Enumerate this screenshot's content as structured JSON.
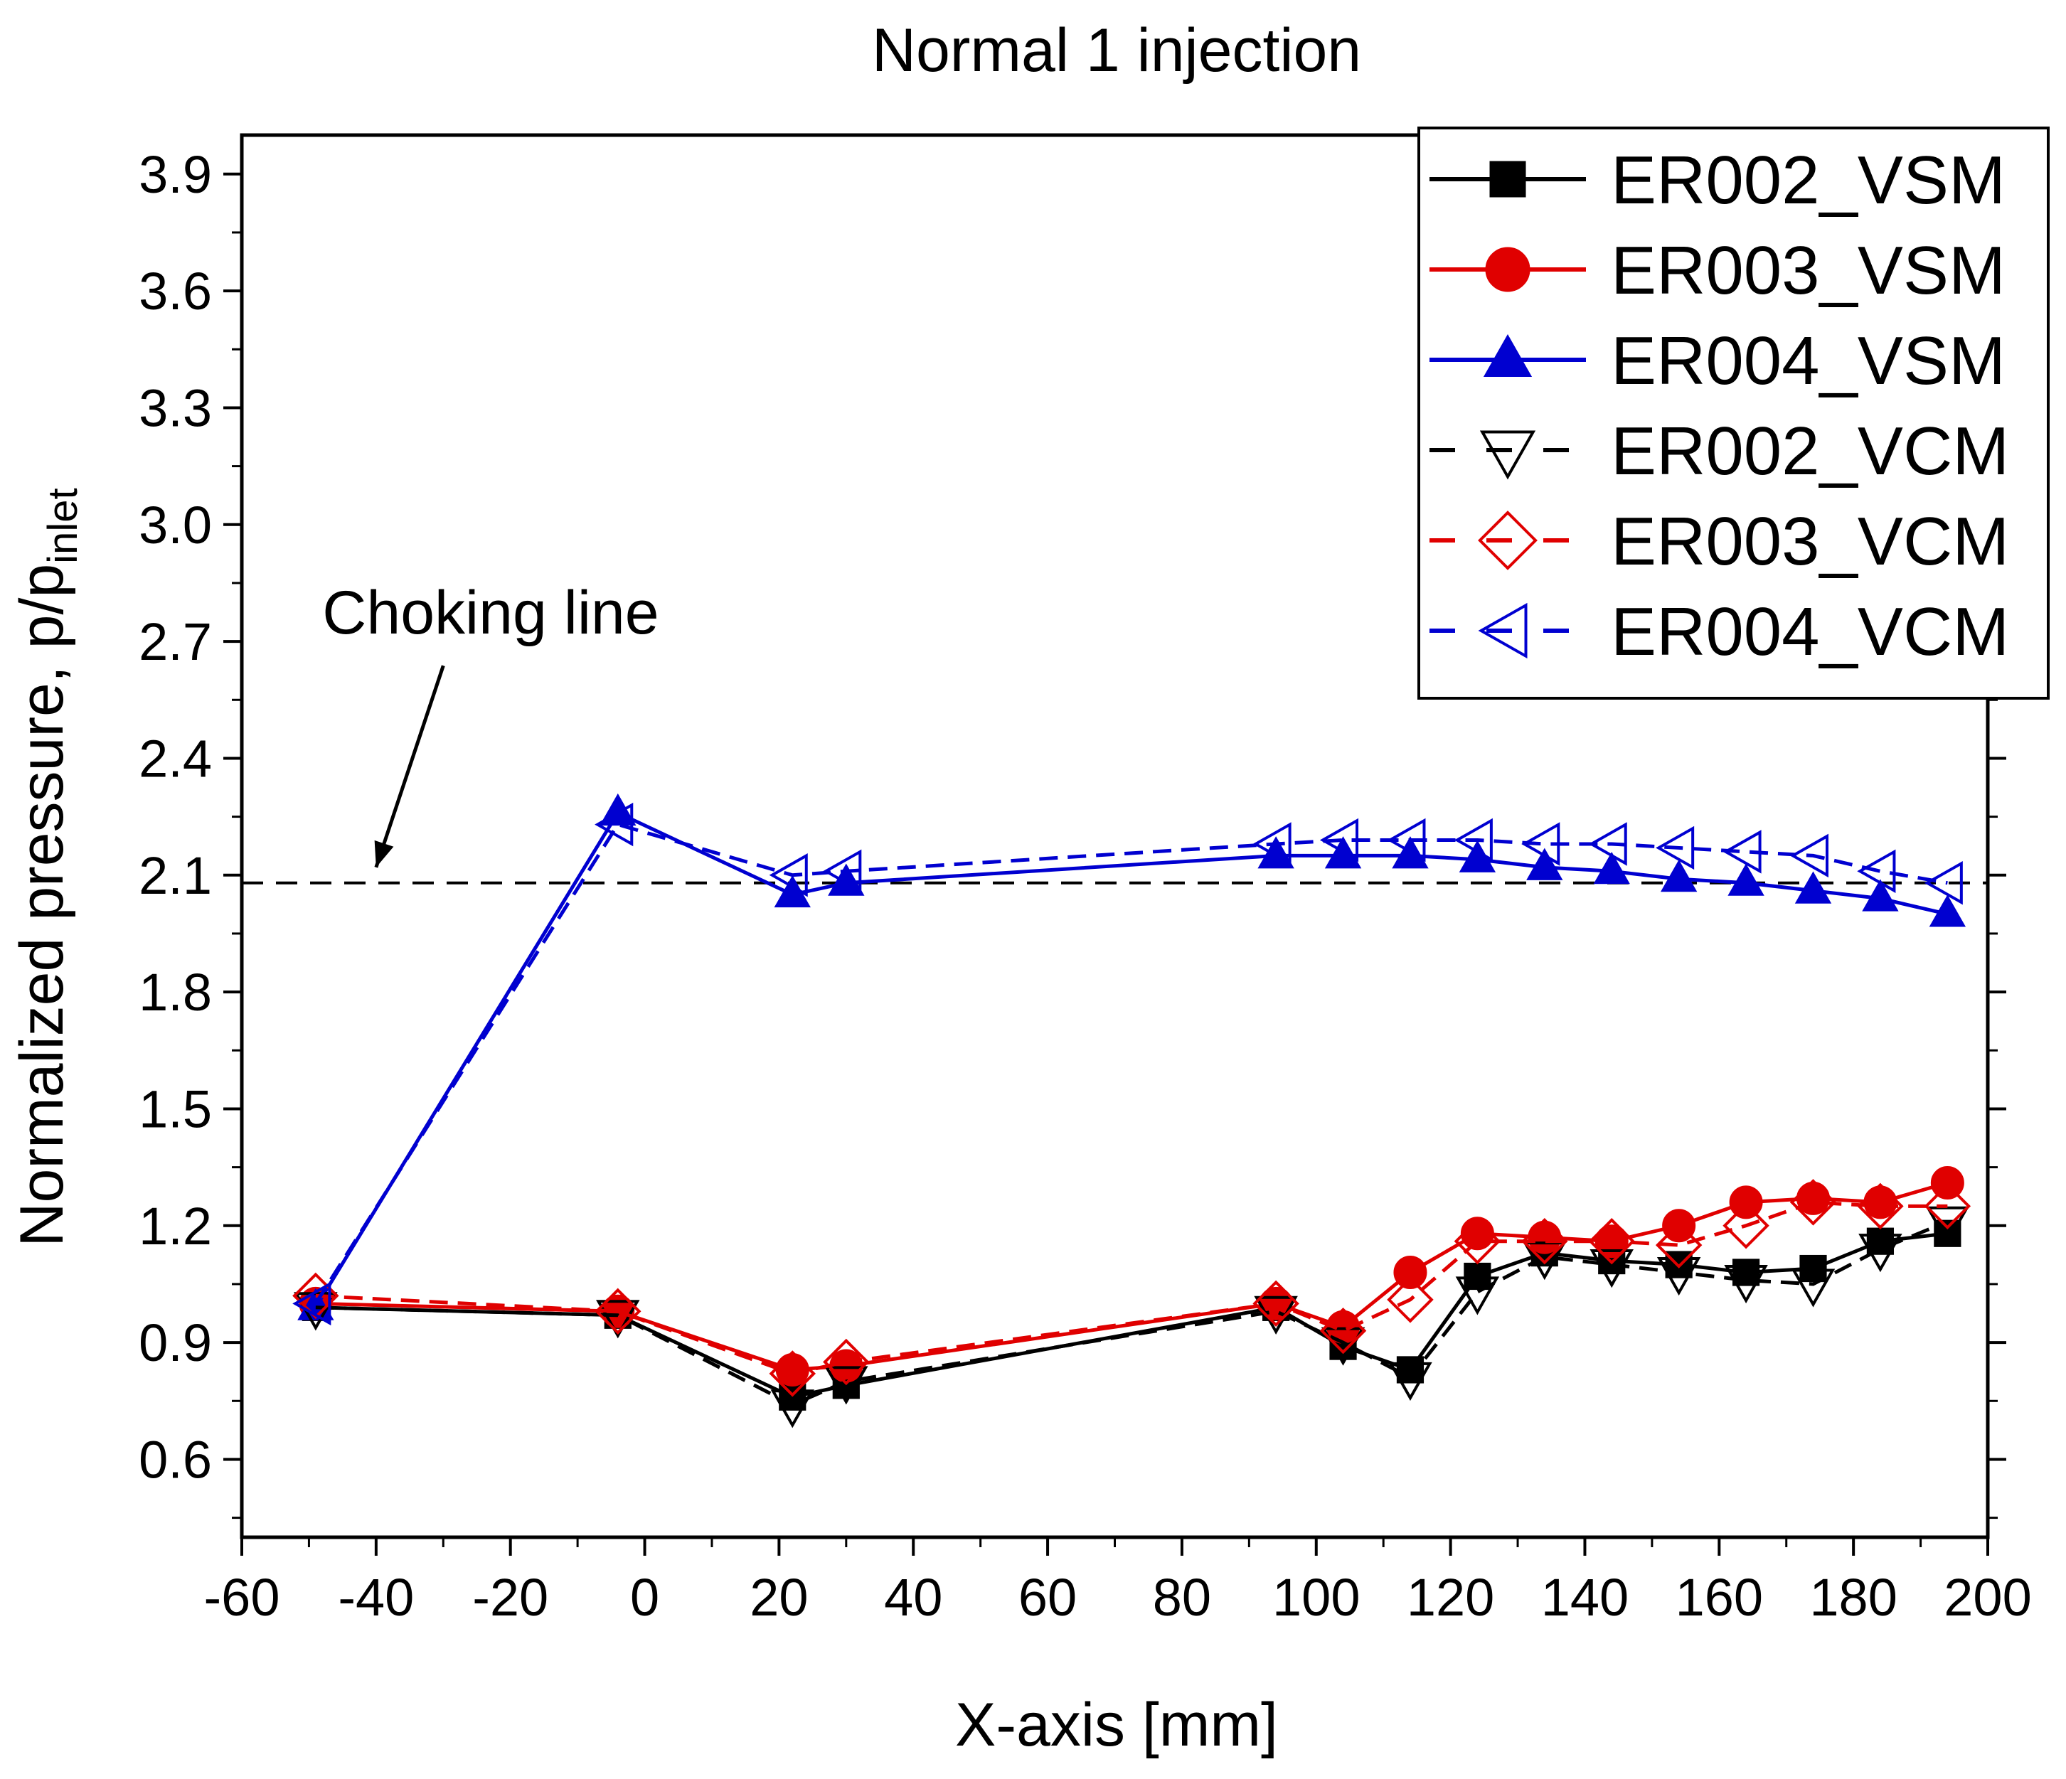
{
  "chart_data": {
    "type": "line",
    "title": "Normal 1 injection",
    "xlabel": "X-axis [mm]",
    "ylabel_main": "Normalized pressure, p/p",
    "ylabel_sub": "inlet",
    "xlim": [
      -60,
      200
    ],
    "ylim": [
      0.4,
      4.0
    ],
    "xticks": [
      -60,
      -40,
      -20,
      0,
      20,
      40,
      60,
      80,
      100,
      120,
      140,
      160,
      180,
      200
    ],
    "yticks": [
      0.6,
      0.9,
      1.2,
      1.5,
      1.8,
      2.1,
      2.4,
      2.7,
      3.0,
      3.3,
      3.6,
      3.9
    ],
    "grid": false,
    "legend_position": "top-right",
    "choking_line": {
      "value": 2.08,
      "label": "Choking line",
      "label_x": -48,
      "label_y": 2.72,
      "arrow_tip_x": -40,
      "arrow_tip_y": 2.12
    },
    "series": [
      {
        "name": "ER002_VSM",
        "color": "#000000",
        "dash": false,
        "marker": "square",
        "filled": true,
        "x": [
          -49,
          -4,
          22,
          30,
          94,
          104,
          114,
          124,
          134,
          144,
          154,
          164,
          174,
          184,
          194
        ],
        "y": [
          0.99,
          0.97,
          0.76,
          0.79,
          0.99,
          0.89,
          0.83,
          1.07,
          1.13,
          1.11,
          1.1,
          1.08,
          1.09,
          1.16,
          1.18
        ]
      },
      {
        "name": "ER003_VSM",
        "color": "#e00000",
        "dash": false,
        "marker": "circle",
        "filled": true,
        "x": [
          -49,
          -4,
          22,
          30,
          94,
          104,
          114,
          124,
          134,
          144,
          154,
          164,
          174,
          184,
          194
        ],
        "y": [
          1.0,
          0.98,
          0.83,
          0.84,
          1.0,
          0.94,
          1.08,
          1.18,
          1.17,
          1.16,
          1.2,
          1.26,
          1.27,
          1.26,
          1.31
        ]
      },
      {
        "name": "ER004_VSM",
        "color": "#0000d0",
        "dash": false,
        "marker": "triangle-up",
        "filled": true,
        "x": [
          -49,
          -4,
          22,
          30,
          94,
          104,
          114,
          124,
          134,
          144,
          154,
          164,
          174,
          184,
          194
        ],
        "y": [
          0.99,
          2.26,
          2.05,
          2.08,
          2.15,
          2.15,
          2.15,
          2.14,
          2.12,
          2.11,
          2.09,
          2.08,
          2.06,
          2.04,
          2.0
        ]
      },
      {
        "name": "ER002_VCM",
        "color": "#000000",
        "dash": true,
        "marker": "triangle-down",
        "filled": false,
        "x": [
          -49,
          -4,
          22,
          30,
          94,
          104,
          114,
          124,
          134,
          144,
          154,
          164,
          174,
          184,
          194
        ],
        "y": [
          0.99,
          0.97,
          0.74,
          0.8,
          0.98,
          0.9,
          0.81,
          1.03,
          1.12,
          1.1,
          1.08,
          1.06,
          1.05,
          1.14,
          1.21
        ]
      },
      {
        "name": "ER003_VCM",
        "color": "#e00000",
        "dash": true,
        "marker": "diamond",
        "filled": false,
        "x": [
          -49,
          -4,
          22,
          30,
          94,
          104,
          114,
          124,
          134,
          144,
          154,
          164,
          174,
          184,
          194
        ],
        "y": [
          1.02,
          0.98,
          0.82,
          0.85,
          1.0,
          0.93,
          1.01,
          1.16,
          1.16,
          1.16,
          1.15,
          1.2,
          1.26,
          1.25,
          1.25
        ]
      },
      {
        "name": "ER004_VCM",
        "color": "#0000d0",
        "dash": true,
        "marker": "triangle-left",
        "filled": false,
        "x": [
          -49,
          -4,
          22,
          30,
          94,
          104,
          114,
          124,
          134,
          144,
          154,
          164,
          174,
          184,
          194
        ],
        "y": [
          1.0,
          2.23,
          2.1,
          2.11,
          2.18,
          2.19,
          2.19,
          2.19,
          2.18,
          2.18,
          2.17,
          2.16,
          2.15,
          2.11,
          2.08
        ]
      }
    ]
  }
}
